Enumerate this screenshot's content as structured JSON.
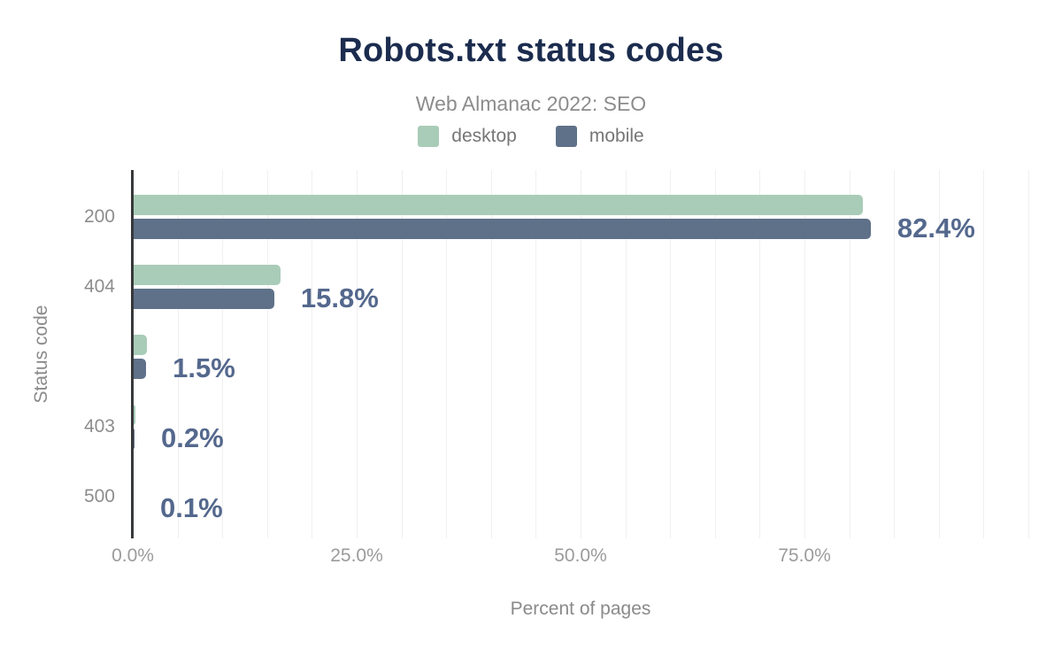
{
  "header": {
    "title": "Robots.txt status codes",
    "subtitle": "Web Almanac 2022: SEO"
  },
  "legend": [
    {
      "label": "desktop",
      "color": "#a9ccb8"
    },
    {
      "label": "mobile",
      "color": "#5f7189"
    }
  ],
  "chart_data": {
    "type": "bar",
    "orientation": "horizontal",
    "title": "Robots.txt status codes",
    "subtitle": "Web Almanac 2022: SEO",
    "categories": [
      "200",
      "404",
      "",
      "403",
      "500"
    ],
    "series": [
      {
        "name": "desktop",
        "color": "#a9ccb8",
        "values": [
          81.5,
          16.5,
          1.6,
          0.3,
          0.1
        ]
      },
      {
        "name": "mobile",
        "color": "#5f7189",
        "values": [
          82.4,
          15.8,
          1.5,
          0.2,
          0.1
        ]
      }
    ],
    "value_labels": {
      "labeled_series": "mobile",
      "texts": [
        "82.4%",
        "15.8%",
        "1.5%",
        "0.2%",
        "0.1%"
      ]
    },
    "xlabel": "Percent of pages",
    "ylabel": "Status code",
    "xlim": [
      0,
      100
    ],
    "x_ticks": [
      {
        "label": "0.0%",
        "value": 0
      },
      {
        "label": "25.0%",
        "value": 25
      },
      {
        "label": "50.0%",
        "value": 50
      },
      {
        "label": "75.0%",
        "value": 75
      }
    ],
    "grid_step": 5,
    "gridlines": true,
    "legend_position": "top"
  },
  "colors": {
    "title": "#1b2c4e",
    "subtitle": "#8c8c8c",
    "legend_text": "#767676",
    "category_label": "#8d8d8d",
    "tick_label": "#9b9b9b",
    "axis_title": "#8a8a8a",
    "value_label": "#54688d",
    "axis_line": "#37383a",
    "gridline": "#f0f0f0",
    "background": "#ffffff"
  }
}
